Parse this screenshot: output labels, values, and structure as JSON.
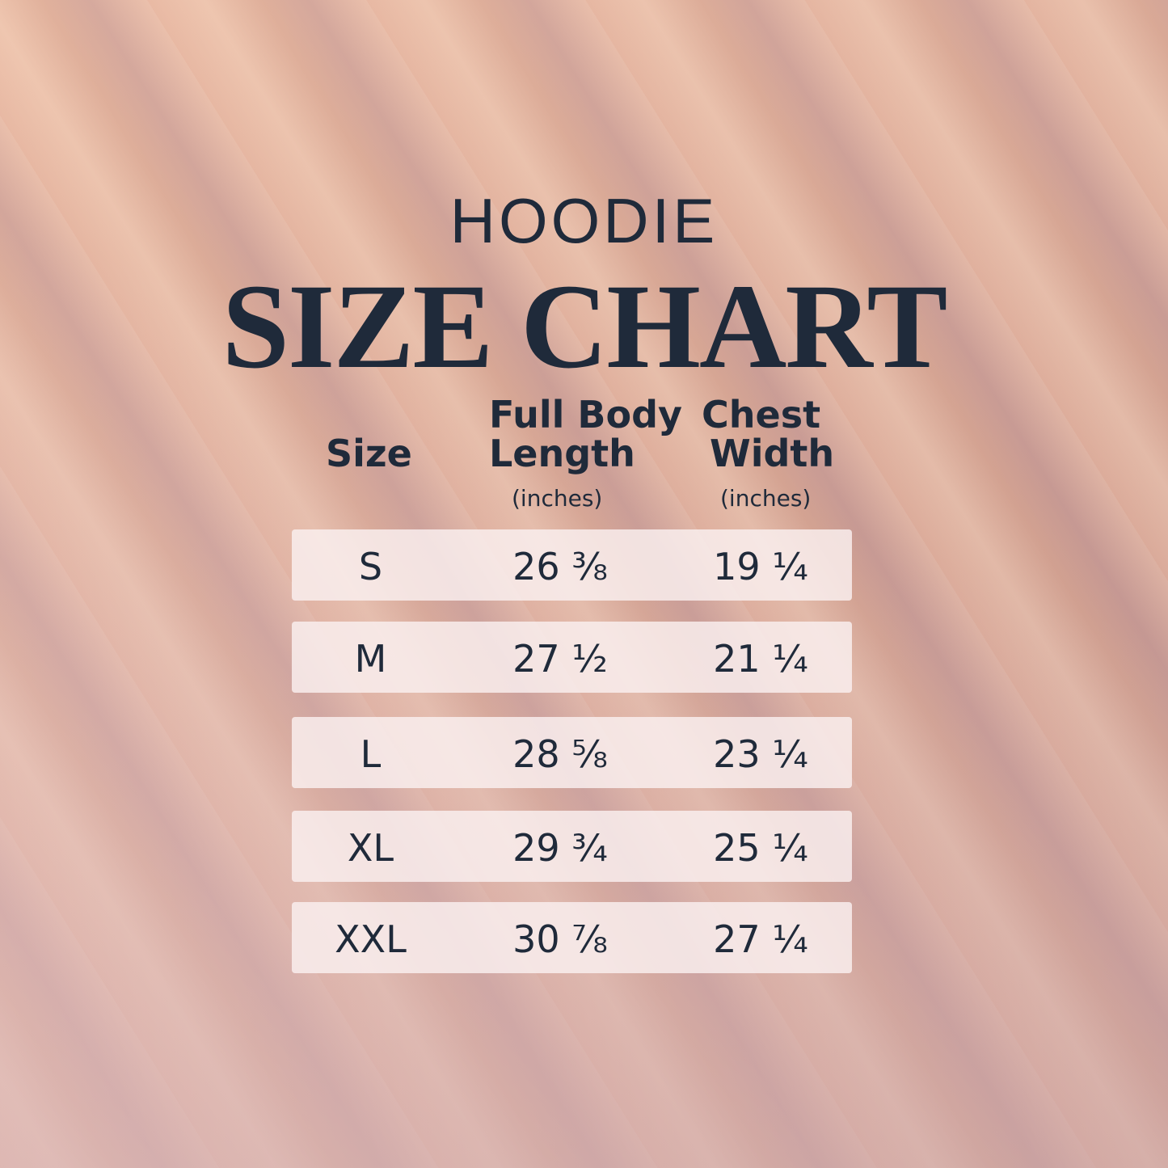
{
  "title": {
    "product": "HOODIE",
    "heading": "SIZE CHART"
  },
  "columns": [
    {
      "label_line1": "",
      "label_line2": "Size",
      "unit": ""
    },
    {
      "label_line1": "Full Body",
      "label_line2": "Length",
      "unit": "(inches)"
    },
    {
      "label_line1": "Chest",
      "label_line2": "Width",
      "unit": "(inches)"
    }
  ],
  "rows": [
    {
      "size": "S",
      "length": "26 ⅜",
      "chest": "19 ¼"
    },
    {
      "size": "M",
      "length": "27 ½",
      "chest": "21 ¼"
    },
    {
      "size": "L",
      "length": "28 ⅝",
      "chest": "23 ¼"
    },
    {
      "size": "XL",
      "length": "29 ¾",
      "chest": "25 ¼"
    },
    {
      "size": "XXL",
      "length": "30 ⅞",
      "chest": "27 ¼"
    }
  ],
  "colors": {
    "text": "#1f2a3a",
    "row_bg": "#faf0f0"
  }
}
